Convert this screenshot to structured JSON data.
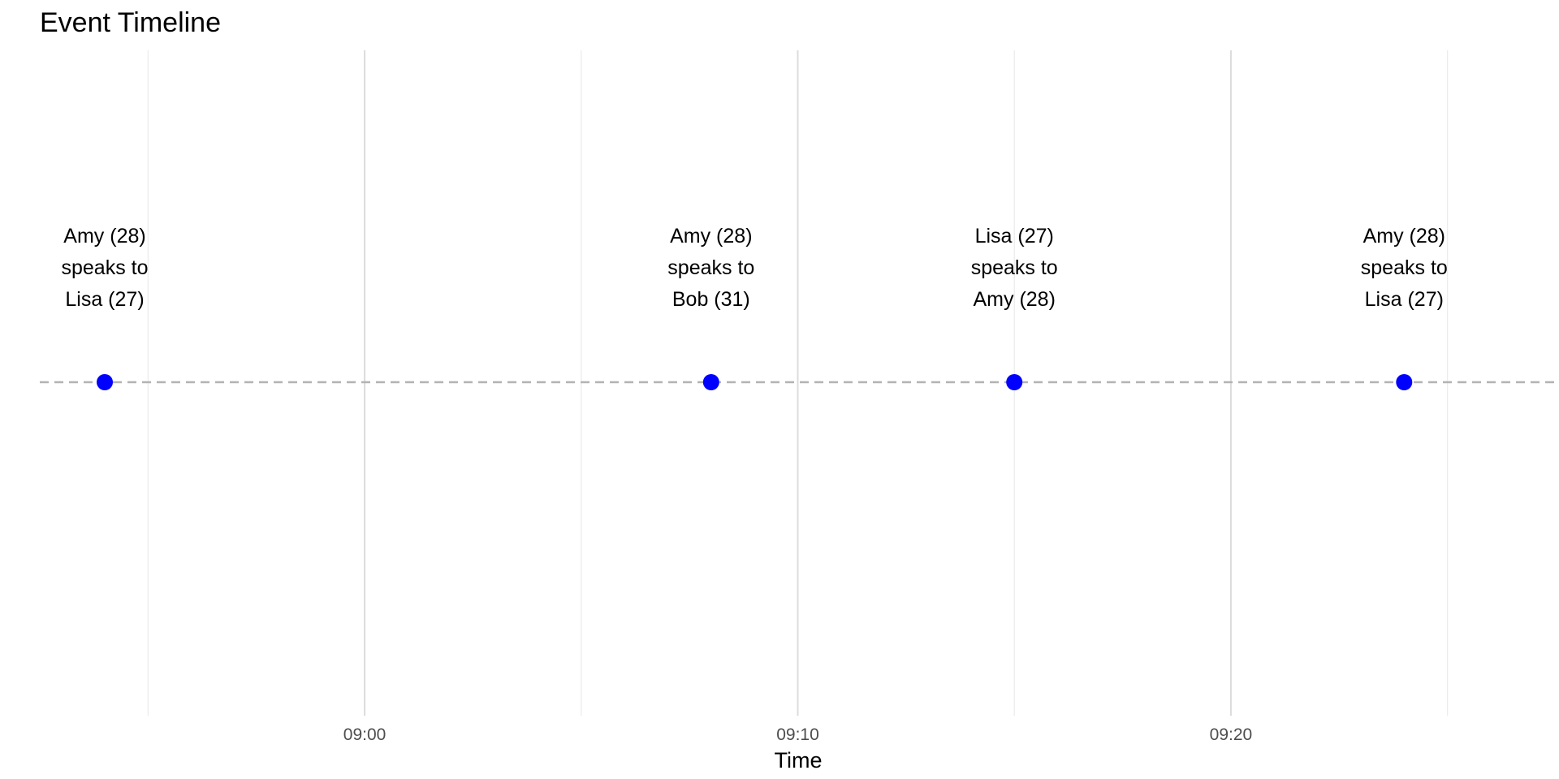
{
  "chart_data": {
    "type": "scatter",
    "title": "Event Timeline",
    "xlabel": "Time",
    "ylabel": "",
    "x_axis": {
      "kind": "time",
      "xlim": [
        "08:52:30",
        "09:27:30"
      ],
      "major_ticks": [
        "09:00",
        "09:10",
        "09:20"
      ],
      "minor_gridlines": [
        "08:55",
        "09:05",
        "09:15",
        "09:25"
      ]
    },
    "grid": "vertical",
    "baseline": "dashed",
    "colors": {
      "point": "#0000ff",
      "baseline": "#b3b3b3",
      "grid_major": "#dcdcdc",
      "grid_minor": "#ebebeb"
    },
    "events": [
      {
        "time": "08:54",
        "label": [
          "Amy (28)",
          "speaks to",
          "Lisa (27)"
        ]
      },
      {
        "time": "09:08",
        "label": [
          "Amy (28)",
          "speaks to",
          "Bob (31)"
        ]
      },
      {
        "time": "09:15",
        "label": [
          "Lisa (27)",
          "speaks to",
          "Amy (28)"
        ]
      },
      {
        "time": "09:24",
        "label": [
          "Amy (28)",
          "speaks to",
          "Lisa (27)"
        ]
      }
    ]
  }
}
